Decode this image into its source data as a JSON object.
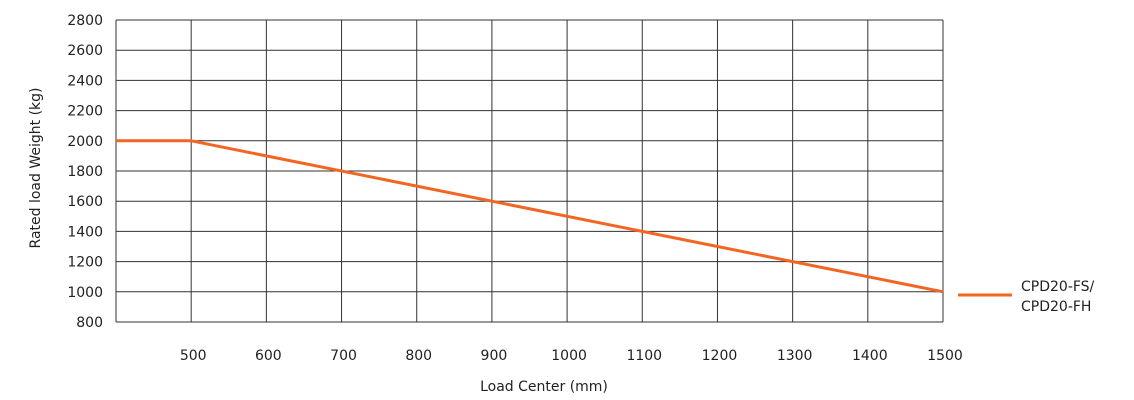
{
  "chart_data": {
    "type": "line",
    "xlabel": "Load Center (mm)",
    "ylabel": "Rated load Weight  (kg)",
    "xlim": [
      400,
      1500
    ],
    "ylim": [
      800,
      2800
    ],
    "x_ticks": [
      500,
      600,
      700,
      800,
      900,
      1000,
      1100,
      1200,
      1300,
      1400,
      1500
    ],
    "x_tick_labels": [
      "500",
      "600",
      "700",
      "800",
      "900",
      "1000",
      "1100",
      "1200",
      "1300",
      "1400",
      "1500"
    ],
    "x_grid": [
      400,
      500,
      600,
      700,
      800,
      900,
      1000,
      1100,
      1200,
      1300,
      1400,
      1500
    ],
    "y_ticks": [
      800,
      1000,
      1200,
      1400,
      1600,
      1800,
      2000,
      2200,
      2400,
      2600,
      2800
    ],
    "y_tick_labels": [
      "800",
      "1000",
      "1200",
      "1400",
      "1600",
      "1800",
      "2000",
      "2200",
      "2400",
      "2600",
      "2800"
    ],
    "grid": true,
    "legend_position": "right",
    "series": [
      {
        "name": "CPD20-FS/\nCPD20-FH",
        "name_lines": [
          "CPD20-FS/",
          "CPD20-FH"
        ],
        "color": "#f26522",
        "x": [
          400,
          500,
          1500
        ],
        "y": [
          2000,
          2000,
          1000
        ]
      }
    ]
  }
}
